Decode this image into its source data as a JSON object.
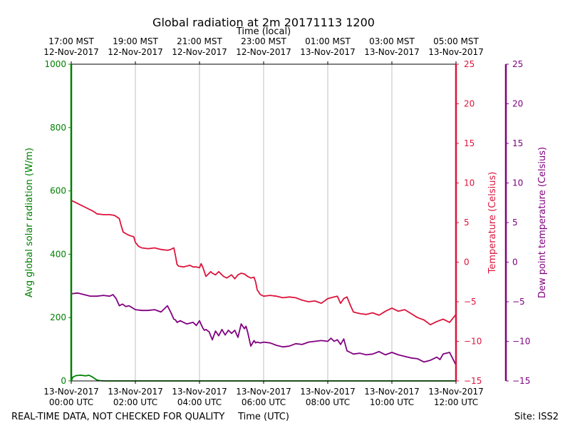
{
  "chart_data": {
    "type": "line",
    "title": "Global radiation at 2m 20171113 1200",
    "top_axis_label": "Time (local)",
    "xlabel": "Time (UTC)",
    "footer_left": "REAL-TIME DATA, NOT CHECKED FOR QUALITY",
    "footer_right": "Site: ISS2",
    "x_range_hours_utc": [
      0,
      12
    ],
    "bottom_ticks": [
      {
        "h": 0,
        "l1": "13-Nov-2017",
        "l2": "00:00 UTC"
      },
      {
        "h": 2,
        "l1": "13-Nov-2017",
        "l2": "02:00 UTC"
      },
      {
        "h": 4,
        "l1": "13-Nov-2017",
        "l2": "04:00 UTC"
      },
      {
        "h": 6,
        "l1": "13-Nov-2017",
        "l2": "06:00 UTC"
      },
      {
        "h": 8,
        "l1": "13-Nov-2017",
        "l2": "08:00 UTC"
      },
      {
        "h": 10,
        "l1": "13-Nov-2017",
        "l2": "10:00 UTC"
      },
      {
        "h": 12,
        "l1": "13-Nov-2017",
        "l2": "12:00 UTC"
      }
    ],
    "top_ticks": [
      {
        "h": 0,
        "l1": "17:00 MST",
        "l2": "12-Nov-2017"
      },
      {
        "h": 2,
        "l1": "19:00 MST",
        "l2": "12-Nov-2017"
      },
      {
        "h": 4,
        "l1": "21:00 MST",
        "l2": "12-Nov-2017"
      },
      {
        "h": 6,
        "l1": "23:00 MST",
        "l2": "12-Nov-2017"
      },
      {
        "h": 8,
        "l1": "01:00 MST",
        "l2": "13-Nov-2017"
      },
      {
        "h": 10,
        "l1": "03:00 MST",
        "l2": "13-Nov-2017"
      },
      {
        "h": 12,
        "l1": "05:00 MST",
        "l2": "13-Nov-2017"
      }
    ],
    "grid": "vertical",
    "axes": {
      "radiation": {
        "label": "Avg global solar radiation (W/m)",
        "range": [
          0,
          1000
        ],
        "ticks": [
          0,
          200,
          400,
          600,
          800,
          1000
        ],
        "color": "#008000",
        "side": "left"
      },
      "temperature": {
        "label": "Temperature (Celsius)",
        "range": [
          -15,
          25
        ],
        "ticks": [
          -15,
          -10,
          -5,
          0,
          5,
          10,
          15,
          20,
          25
        ],
        "tick_labels": [
          "−15",
          "−10",
          "−5",
          "0",
          "5",
          "10",
          "15",
          "20",
          "25"
        ],
        "color": "#dc143c",
        "side": "right"
      },
      "dewpoint": {
        "label": "Dew point temperature (Celsius)",
        "range": [
          -15,
          25
        ],
        "ticks": [
          -15,
          -10,
          -5,
          0,
          5,
          10,
          15,
          20,
          25
        ],
        "tick_labels": [
          "−15",
          "−10",
          "−5",
          "0",
          "5",
          "10",
          "15",
          "20",
          "25"
        ],
        "color": "#800080",
        "side": "right-outer"
      }
    },
    "series": [
      {
        "axis": "radiation",
        "color": "#008000",
        "x": [
          0,
          0.05,
          0.15,
          0.3,
          0.45,
          0.55,
          0.65,
          0.8,
          0.9,
          1.0,
          2.0,
          3.0,
          3.35,
          4.0,
          6.0,
          8.0,
          10.0,
          12.0
        ],
        "y": [
          0,
          12,
          17,
          18,
          16,
          18,
          13,
          3,
          1,
          0,
          0,
          0,
          0,
          0,
          0,
          0,
          0,
          0
        ]
      },
      {
        "axis": "temperature",
        "color": "#dc143c",
        "x": [
          0,
          0.1,
          0.3,
          0.5,
          0.7,
          0.8,
          1.0,
          1.2,
          1.35,
          1.5,
          1.55,
          1.62,
          1.7,
          1.8,
          1.95,
          2.0,
          2.1,
          2.2,
          2.4,
          2.6,
          2.8,
          3.0,
          3.1,
          3.2,
          3.25,
          3.3,
          3.35,
          3.5,
          3.7,
          3.8,
          3.9,
          4.0,
          4.05,
          4.1,
          4.15,
          4.2,
          4.35,
          4.4,
          4.5,
          4.6,
          4.75,
          4.85,
          5.0,
          5.1,
          5.2,
          5.3,
          5.4,
          5.5,
          5.6,
          5.7,
          5.75,
          5.8,
          5.9,
          6.0,
          6.2,
          6.4,
          6.6,
          6.8,
          7.0,
          7.2,
          7.4,
          7.6,
          7.8,
          8.0,
          8.2,
          8.3,
          8.4,
          8.5,
          8.6,
          8.7,
          8.8,
          9.0,
          9.2,
          9.4,
          9.6,
          9.8,
          10.0,
          10.2,
          10.4,
          10.6,
          10.8,
          11.0,
          11.2,
          11.4,
          11.6,
          11.8,
          12.0
        ],
        "y": [
          7.8,
          7.6,
          7.2,
          6.8,
          6.4,
          6.1,
          6.0,
          6.0,
          5.9,
          5.5,
          4.7,
          3.8,
          3.6,
          3.4,
          3.2,
          2.5,
          2.0,
          1.8,
          1.7,
          1.8,
          1.6,
          1.5,
          1.6,
          1.8,
          0.8,
          -0.3,
          -0.5,
          -0.6,
          -0.4,
          -0.6,
          -0.6,
          -0.7,
          -0.2,
          -0.6,
          -1.2,
          -1.8,
          -1.2,
          -1.4,
          -1.6,
          -1.2,
          -1.8,
          -2.0,
          -1.6,
          -2.1,
          -1.6,
          -1.4,
          -1.5,
          -1.8,
          -2.0,
          -1.9,
          -2.5,
          -3.5,
          -4.1,
          -4.3,
          -4.2,
          -4.3,
          -4.5,
          -4.4,
          -4.5,
          -4.8,
          -5.0,
          -4.9,
          -5.2,
          -4.6,
          -4.4,
          -4.3,
          -5.2,
          -4.6,
          -4.4,
          -5.4,
          -6.3,
          -6.5,
          -6.6,
          -6.4,
          -6.7,
          -6.2,
          -5.8,
          -6.2,
          -6.0,
          -6.5,
          -7.0,
          -7.3,
          -7.9,
          -7.5,
          -7.2,
          -7.6,
          -6.6
        ]
      },
      {
        "axis": "dewpoint",
        "color": "#800080",
        "x": [
          0,
          0.2,
          0.4,
          0.6,
          0.8,
          1.0,
          1.2,
          1.3,
          1.4,
          1.5,
          1.6,
          1.7,
          1.8,
          2.0,
          2.2,
          2.4,
          2.6,
          2.8,
          3.0,
          3.1,
          3.2,
          3.25,
          3.3,
          3.4,
          3.6,
          3.8,
          3.9,
          4.0,
          4.1,
          4.15,
          4.2,
          4.3,
          4.4,
          4.5,
          4.6,
          4.7,
          4.8,
          4.9,
          5.0,
          5.1,
          5.2,
          5.3,
          5.4,
          5.45,
          5.5,
          5.6,
          5.7,
          5.75,
          5.8,
          5.9,
          6.0,
          6.2,
          6.4,
          6.6,
          6.8,
          7.0,
          7.2,
          7.4,
          7.6,
          7.8,
          8.0,
          8.1,
          8.2,
          8.3,
          8.4,
          8.5,
          8.6,
          8.7,
          8.8,
          9.0,
          9.2,
          9.4,
          9.6,
          9.8,
          10.0,
          10.2,
          10.4,
          10.6,
          10.8,
          11.0,
          11.2,
          11.4,
          11.5,
          11.6,
          11.8,
          12.0
        ],
        "y": [
          -4.0,
          -3.9,
          -4.1,
          -4.3,
          -4.3,
          -4.2,
          -4.3,
          -4.1,
          -4.6,
          -5.5,
          -5.3,
          -5.6,
          -5.5,
          -6.0,
          -6.1,
          -6.1,
          -6.0,
          -6.3,
          -5.5,
          -6.3,
          -7.2,
          -7.3,
          -7.6,
          -7.4,
          -7.8,
          -7.6,
          -8.0,
          -7.4,
          -8.3,
          -8.6,
          -8.5,
          -8.8,
          -9.8,
          -8.7,
          -9.3,
          -8.5,
          -9.2,
          -8.6,
          -9.0,
          -8.6,
          -9.5,
          -7.8,
          -8.4,
          -8.1,
          -8.8,
          -10.6,
          -9.9,
          -10.2,
          -10.1,
          -10.2,
          -10.1,
          -10.2,
          -10.5,
          -10.7,
          -10.6,
          -10.3,
          -10.4,
          -10.1,
          -10.0,
          -9.9,
          -10.0,
          -9.6,
          -10.0,
          -9.8,
          -10.4,
          -9.7,
          -11.2,
          -11.4,
          -11.6,
          -11.5,
          -11.7,
          -11.6,
          -11.3,
          -11.7,
          -11.4,
          -11.7,
          -11.9,
          -12.1,
          -12.2,
          -12.6,
          -12.4,
          -12.0,
          -12.3,
          -11.6,
          -11.4,
          -13.0
        ]
      }
    ]
  }
}
